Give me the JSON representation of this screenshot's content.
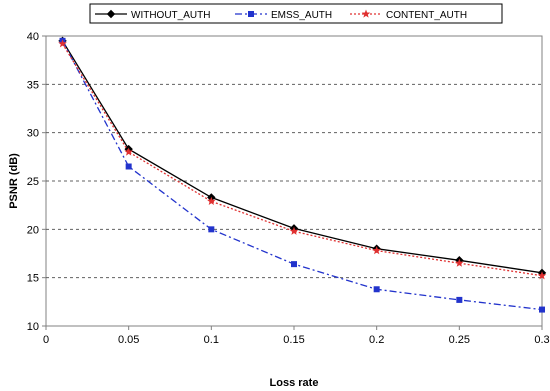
{
  "chart_data": {
    "type": "line",
    "title": "",
    "xlabel": "Loss rate",
    "ylabel": "PSNR (dB)",
    "xlim": [
      0,
      0.3
    ],
    "ylim": [
      10,
      40
    ],
    "xticks": [
      0,
      0.05,
      0.1,
      0.15,
      0.2,
      0.25,
      0.3
    ],
    "xtick_labels": [
      "0",
      "0.05",
      "0.1",
      "0.15",
      "0.2",
      "0.25",
      "0.3"
    ],
    "yticks": [
      10,
      15,
      20,
      25,
      30,
      35,
      40
    ],
    "ytick_labels": [
      "10",
      "15",
      "20",
      "25",
      "30",
      "35",
      "40"
    ],
    "grid": "horizontal-dashed",
    "legend_position": "top",
    "x": [
      0.01,
      0.05,
      0.1,
      0.15,
      0.2,
      0.25,
      0.3
    ],
    "series": [
      {
        "name": "WITHOUT_AUTH",
        "values": [
          39.5,
          28.3,
          23.3,
          20.1,
          18.0,
          16.8,
          15.5
        ],
        "color": "#000000",
        "line_style": "solid",
        "marker": "diamond"
      },
      {
        "name": "EMSS_AUTH",
        "values": [
          39.5,
          26.5,
          20.0,
          16.4,
          13.8,
          12.7,
          11.7
        ],
        "color": "#2233cc",
        "line_style": "dashdot",
        "marker": "square"
      },
      {
        "name": "CONTENT_AUTH",
        "values": [
          39.2,
          28.0,
          22.9,
          19.8,
          17.8,
          16.5,
          15.2
        ],
        "color": "#e03030",
        "line_style": "dotted",
        "marker": "star"
      }
    ]
  }
}
